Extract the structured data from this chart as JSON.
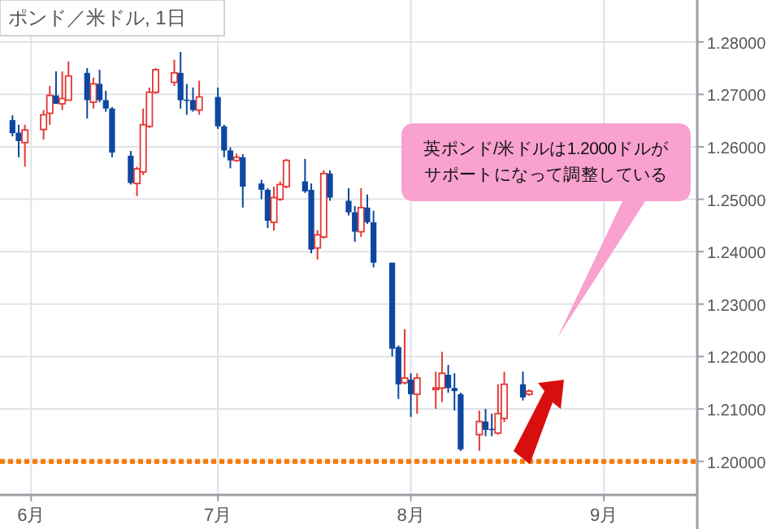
{
  "chart_data": {
    "type": "candlestick",
    "title": "ポンド／米ドル, 1日",
    "x": [
      "--05-29",
      "--05-30",
      "--05-31",
      "--06-03",
      "--06-04",
      "--06-05",
      "--06-06",
      "--06-07",
      "--06-10",
      "--06-11",
      "--06-12",
      "--06-13",
      "--06-14",
      "--06-17",
      "--06-18",
      "--06-19",
      "--06-20",
      "--06-21",
      "--06-24",
      "--06-25",
      "--06-26",
      "--06-27",
      "--06-28",
      "--07-01",
      "--07-02",
      "--07-03",
      "--07-04",
      "--07-05",
      "--07-08",
      "--07-09",
      "--07-10",
      "--07-11",
      "--07-12",
      "--07-15",
      "--07-16",
      "--07-17",
      "--07-18",
      "--07-19",
      "--07-22",
      "--07-23",
      "--07-24",
      "--07-25",
      "--07-26",
      "--07-29",
      "--07-30",
      "--07-31",
      "--08-01",
      "--08-02",
      "--08-05",
      "--08-06",
      "--08-07",
      "--08-08",
      "--08-09",
      "--08-12",
      "--08-13",
      "--08-14",
      "--08-15",
      "--08-16",
      "--08-19",
      "--08-20"
    ],
    "ohlc": [
      [
        1.2651,
        1.266,
        1.262,
        1.2626
      ],
      [
        1.2627,
        1.2642,
        1.258,
        1.2611
      ],
      [
        1.2608,
        1.2642,
        1.2562,
        1.2632
      ],
      [
        1.2633,
        1.267,
        1.2614,
        1.2661
      ],
      [
        1.2664,
        1.2716,
        1.2642,
        1.2698
      ],
      [
        1.2698,
        1.2744,
        1.2682,
        1.2682
      ],
      [
        1.2682,
        1.2744,
        1.267,
        1.2692
      ],
      [
        1.2689,
        1.2763,
        1.2689,
        1.2735
      ],
      [
        1.2741,
        1.275,
        1.2654,
        1.2689
      ],
      [
        1.2685,
        1.2732,
        1.2673,
        1.272
      ],
      [
        1.272,
        1.2747,
        1.2685,
        1.2689
      ],
      [
        1.2689,
        1.2707,
        1.2667,
        1.2673
      ],
      [
        1.2673,
        1.2676,
        1.258,
        1.2589
      ],
      [
        1.2583,
        1.2592,
        1.2528,
        1.2531
      ],
      [
        1.253,
        1.2562,
        1.2506,
        1.2558
      ],
      [
        1.2552,
        1.2673,
        1.2546,
        1.2642
      ],
      [
        1.2639,
        1.2713,
        1.2636,
        1.2704
      ],
      [
        1.2704,
        1.275,
        1.2701,
        1.2747
      ],
      [
        1.2723,
        1.2766,
        1.2716,
        1.2741
      ],
      [
        1.2741,
        1.2781,
        1.2673,
        1.2689
      ],
      [
        1.269,
        1.272,
        1.2661,
        1.2688
      ],
      [
        1.2689,
        1.2713,
        1.2667,
        1.267
      ],
      [
        1.267,
        1.2726,
        1.2661,
        1.2695
      ],
      [
        1.2695,
        1.2713,
        1.2634,
        1.2639
      ],
      [
        1.2639,
        1.2642,
        1.258,
        1.2593
      ],
      [
        1.2593,
        1.2599,
        1.2559,
        1.2574
      ],
      [
        1.2574,
        1.2587,
        1.2571,
        1.258
      ],
      [
        1.258,
        1.2586,
        1.2484,
        1.2524
      ],
      [
        1.253,
        1.2537,
        1.25,
        1.2518
      ],
      [
        1.2518,
        1.2521,
        1.2445,
        1.2459
      ],
      [
        1.2456,
        1.2524,
        1.244,
        1.2503
      ],
      [
        1.25,
        1.2534,
        1.2497,
        1.2528
      ],
      [
        1.2524,
        1.2577,
        1.2521,
        1.2574
      ],
      [
        1.2534,
        1.2577,
        1.2512,
        1.2515
      ],
      [
        1.2518,
        1.253,
        1.2397,
        1.2404
      ],
      [
        1.2407,
        1.2441,
        1.2385,
        1.2432
      ],
      [
        1.2428,
        1.2555,
        1.2425,
        1.2549
      ],
      [
        1.2549,
        1.2555,
        1.2497,
        1.2503
      ],
      [
        1.2497,
        1.2521,
        1.2469,
        1.2475
      ],
      [
        1.2475,
        1.2487,
        1.2419,
        1.2438
      ],
      [
        1.2438,
        1.2521,
        1.2428,
        1.2484
      ],
      [
        1.2484,
        1.2509,
        1.2453,
        1.2456
      ],
      [
        1.2456,
        1.2478,
        1.237,
        1.2379
      ],
      [
        1.2379,
        1.2379,
        1.22,
        1.2215
      ],
      [
        1.2218,
        1.2221,
        1.2119,
        1.2147
      ],
      [
        1.215,
        1.2252,
        1.2147,
        1.2159
      ],
      [
        1.2156,
        1.2168,
        1.2085,
        1.2128
      ],
      [
        1.2128,
        1.2168,
        1.2091,
        1.2159
      ],
      [
        1.2137,
        1.2171,
        1.21,
        1.214
      ],
      [
        1.214,
        1.2209,
        1.2113,
        1.2168
      ],
      [
        1.2165,
        1.2184,
        1.2131,
        1.214
      ],
      [
        1.214,
        1.2168,
        1.2097,
        1.2134
      ],
      [
        1.2128,
        1.2131,
        1.202,
        1.2023
      ],
      [
        1.2051,
        1.2097,
        1.202,
        1.2076
      ],
      [
        1.2076,
        1.21,
        1.2048,
        1.206
      ],
      [
        1.2062,
        1.2091,
        1.2048,
        1.206
      ],
      [
        1.2054,
        1.2147,
        1.2051,
        1.2091
      ],
      [
        1.2082,
        1.2171,
        1.2075,
        1.2147
      ],
      [
        1.2147,
        1.2171,
        1.2116,
        1.2122
      ],
      [
        1.2128,
        1.2137,
        1.2125,
        1.2134
      ]
    ],
    "colors": [
      "#0d47a1",
      "#0d47a1",
      "#e53935",
      "#e53935",
      "#e53935",
      "#0d47a1",
      "#e53935",
      "#e53935",
      "#0d47a1",
      "#e53935",
      "#0d47a1",
      "#0d47a1",
      "#0d47a1",
      "#0d47a1",
      "#e53935",
      "#e53935",
      "#e53935",
      "#e53935",
      "#e53935",
      "#0d47a1",
      "#0d47a1",
      "#0d47a1",
      "#e53935",
      "#0d47a1",
      "#0d47a1",
      "#0d47a1",
      "#e53935",
      "#0d47a1",
      "#0d47a1",
      "#0d47a1",
      "#e53935",
      "#e53935",
      "#e53935",
      "#0d47a1",
      "#0d47a1",
      "#e53935",
      "#e53935",
      "#0d47a1",
      "#0d47a1",
      "#0d47a1",
      "#e53935",
      "#0d47a1",
      "#0d47a1",
      "#0d47a1",
      "#0d47a1",
      "#e53935",
      "#0d47a1",
      "#e53935",
      "#e53935",
      "#e53935",
      "#0d47a1",
      "#0d47a1",
      "#0d47a1",
      "#e53935",
      "#0d47a1",
      "#0d47a1",
      "#e53935",
      "#e53935",
      "#0d47a1",
      "#e53935"
    ],
    "xlim": [
      "--05-27",
      "--09-16"
    ],
    "xticks": [
      {
        "value": "--06-01",
        "label": "6月"
      },
      {
        "value": "--07-01",
        "label": "7月"
      },
      {
        "value": "--08-01",
        "label": "8月"
      },
      {
        "value": "--09-01",
        "label": "9月"
      }
    ],
    "ylim": [
      1.1936,
      1.288
    ],
    "yticks": [
      {
        "value": 1.2,
        "label": "1.20000"
      },
      {
        "value": 1.21,
        "label": "1.21000"
      },
      {
        "value": 1.22,
        "label": "1.22000"
      },
      {
        "value": 1.23,
        "label": "1.23000"
      },
      {
        "value": 1.24,
        "label": "1.24000"
      },
      {
        "value": 1.25,
        "label": "1.25000"
      },
      {
        "value": 1.26,
        "label": "1.26000"
      },
      {
        "value": 1.27,
        "label": "1.27000"
      },
      {
        "value": 1.28,
        "label": "1.28000"
      }
    ],
    "grid": true,
    "ref_lines": [
      {
        "axis": "y",
        "value": 1.2,
        "color": "#f57c00",
        "line_style": "dotted"
      }
    ],
    "annotations": [
      "英ポンド/米ドルは1.2000ドルがサポートになって調整している"
    ]
  }
}
